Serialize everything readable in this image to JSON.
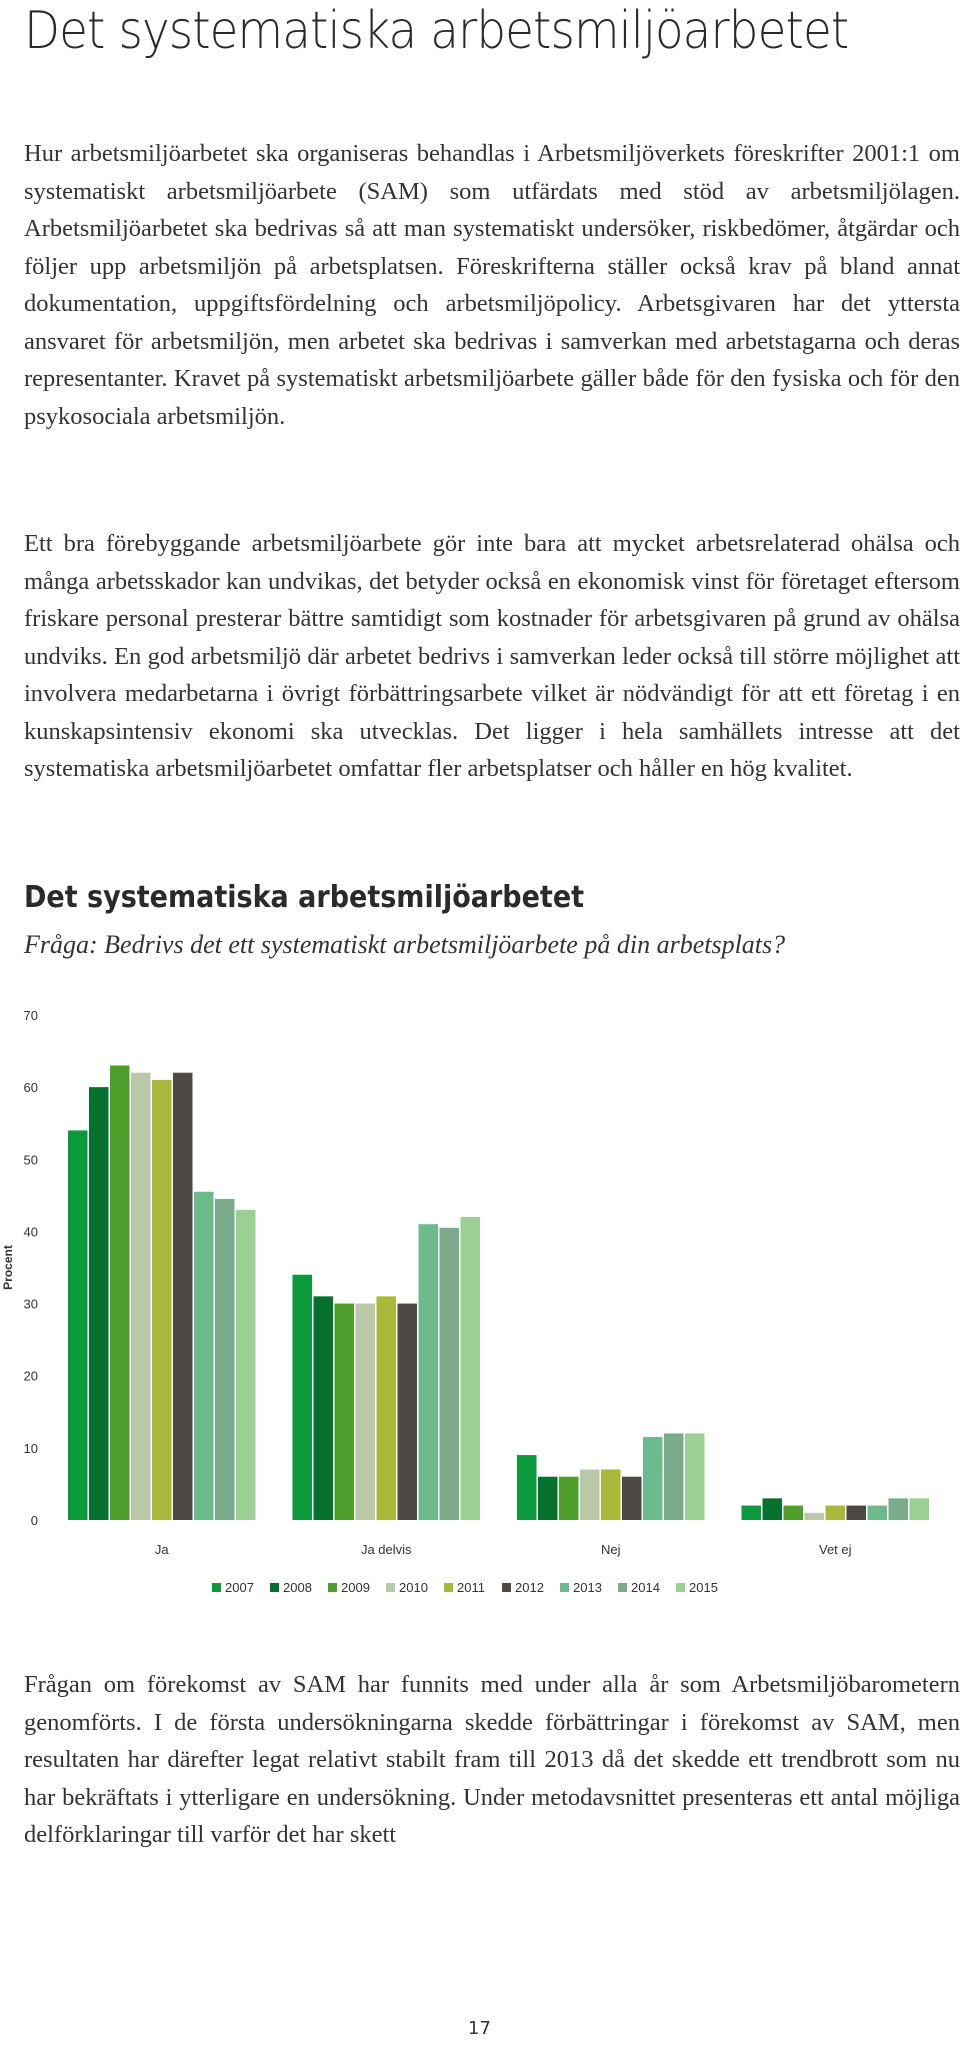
{
  "page": {
    "title": "Det systematiska arbetsmiljöarbetet",
    "paragraphs": [
      "Hur arbetsmiljöarbetet ska organiseras behandlas i Arbetsmiljöverkets föreskrifter 2001:1 om systematiskt arbetsmiljöarbete (SAM) som utfärdats med stöd av arbetsmiljölagen. Arbetsmiljöarbetet ska bedrivas så att man systematiskt undersöker, riskbedömer, åtgärdar och följer upp arbetsmiljön på arbetsplatsen. Föreskrifterna ställer också krav på bland annat dokumentation, uppgiftsfördelning och arbetsmiljöpolicy. Arbetsgivaren har det yttersta ansvaret för arbetsmiljön, men arbetet ska bedrivas i samverkan med arbetstagarna och deras representanter. Kravet på systematiskt arbetsmiljöarbete gäller både för den fysiska och för den psykosociala arbetsmiljön.",
      "Ett bra förebyggande arbetsmiljöarbete gör inte bara att mycket arbetsrelaterad ohälsa och många arbetsskador kan undvikas, det betyder också en ekonomisk vinst för företaget eftersom friskare personal presterar bättre samtidigt som kostnader för arbetsgivaren på grund av ohälsa undviks. En god arbetsmiljö där arbetet bedrivs i samverkan leder också till större möjlighet att involvera medarbetarna i övrigt förbättringsarbete vilket är nödvändigt för att ett företag i en kunskapsintensiv ekonomi ska utvecklas. Det ligger i hela samhällets intresse att det systematiska arbetsmiljöarbetet omfattar fler arbetsplatser och håller en hög kvalitet.",
      "Frågan om förekomst av SAM har funnits med under alla år som Arbetsmiljöbarometern genomförts. I de första undersökningarna skedde förbättringar i förekomst av SAM, men resultaten har därefter legat relativt stabilt fram till 2013 då det skedde ett trendbrott som nu har bekräftats i ytterligare en undersökning. Under metodavsnittet presenteras ett antal möjliga delförklaringar till varför det har skett"
    ],
    "chart_heading": "Det systematiska arbetsmiljöarbetet",
    "chart_question": "Fråga: Bedrivs det ett systematiskt arbetsmiljöarbete på din arbetsplats?",
    "page_number": "17"
  },
  "chart_data": {
    "type": "bar",
    "categories": [
      "Ja",
      "Ja delvis",
      "Nej",
      "Vet ej"
    ],
    "ylabel": "Procent",
    "ylim": [
      0,
      70
    ],
    "yticks": [
      0,
      10,
      20,
      30,
      40,
      50,
      60,
      70
    ],
    "grid": false,
    "legend_position": "bottom",
    "series": [
      {
        "name": "2007",
        "color": "#0a9a3c",
        "values": [
          54,
          34,
          9,
          2
        ]
      },
      {
        "name": "2008",
        "color": "#06702e",
        "values": [
          60,
          31,
          6,
          3
        ]
      },
      {
        "name": "2009",
        "color": "#4e9e2c",
        "values": [
          63,
          30,
          6,
          2
        ]
      },
      {
        "name": "2010",
        "color": "#b9c9a8",
        "values": [
          62,
          30,
          7,
          1
        ]
      },
      {
        "name": "2011",
        "color": "#aab83a",
        "values": [
          61,
          31,
          7,
          2
        ]
      },
      {
        "name": "2012",
        "color": "#4d4a46",
        "values": [
          62,
          30,
          6,
          2
        ]
      },
      {
        "name": "2013",
        "color": "#6dba8c",
        "values": [
          45.5,
          41,
          11.5,
          2
        ]
      },
      {
        "name": "2014",
        "color": "#7aab8a",
        "values": [
          44.5,
          40.5,
          12,
          3
        ]
      },
      {
        "name": "2015",
        "color": "#9ccf94",
        "values": [
          43,
          42,
          12,
          3
        ]
      }
    ]
  }
}
